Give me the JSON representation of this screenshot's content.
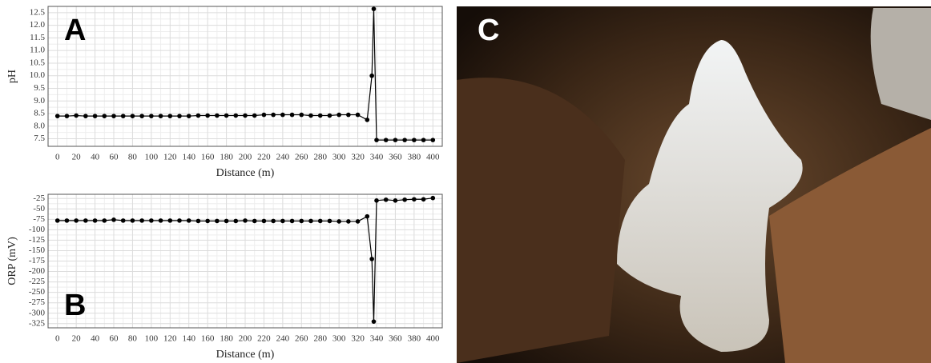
{
  "chart_data": [
    {
      "type": "line",
      "annotations": [
        "A"
      ],
      "ylabel": "pH",
      "xlabel": "Distance (m)",
      "x": [
        0,
        10,
        20,
        30,
        40,
        50,
        60,
        70,
        80,
        90,
        100,
        110,
        120,
        130,
        140,
        150,
        160,
        170,
        180,
        190,
        200,
        210,
        220,
        230,
        240,
        250,
        260,
        270,
        280,
        290,
        300,
        310,
        320,
        330,
        335,
        337,
        340,
        350,
        360,
        370,
        380,
        390,
        400
      ],
      "series": [
        {
          "color": "#000000",
          "values": [
            8.4,
            8.4,
            8.42,
            8.4,
            8.4,
            8.4,
            8.4,
            8.4,
            8.4,
            8.4,
            8.4,
            8.4,
            8.4,
            8.4,
            8.4,
            8.42,
            8.42,
            8.42,
            8.42,
            8.42,
            8.42,
            8.42,
            8.45,
            8.45,
            8.45,
            8.45,
            8.45,
            8.42,
            8.42,
            8.42,
            8.45,
            8.45,
            8.45,
            8.25,
            10.0,
            12.65,
            7.45,
            7.45,
            7.45,
            7.45,
            7.45,
            7.45,
            7.45
          ]
        }
      ],
      "xlim": [
        -10,
        410
      ],
      "xticks": [
        0,
        20,
        40,
        60,
        80,
        100,
        120,
        140,
        160,
        180,
        200,
        220,
        240,
        260,
        280,
        300,
        320,
        340,
        360,
        380,
        400
      ],
      "ylim": [
        7.2,
        12.75
      ],
      "yticks": [
        7.5,
        {
          "value": 8,
          "label": "8.0"
        },
        8.5,
        {
          "value": 9,
          "label": "9.0"
        },
        9.5,
        {
          "value": 10,
          "label": "10.0"
        },
        10.5,
        {
          "value": 11,
          "label": "11.0"
        },
        11.5,
        {
          "value": 12,
          "label": "12.0"
        },
        12.5
      ],
      "grid": true
    },
    {
      "type": "line",
      "annotations": [
        "B"
      ],
      "ylabel": "ORP (mV)",
      "xlabel": "Distance (m)",
      "x": [
        0,
        10,
        20,
        30,
        40,
        50,
        60,
        70,
        80,
        90,
        100,
        110,
        120,
        130,
        140,
        150,
        160,
        170,
        180,
        190,
        200,
        210,
        220,
        230,
        240,
        250,
        260,
        270,
        280,
        290,
        300,
        310,
        320,
        330,
        335,
        337,
        340,
        350,
        360,
        370,
        380,
        390,
        400
      ],
      "series": [
        {
          "color": "#000000",
          "values": [
            -78,
            -78,
            -78,
            -78,
            -78,
            -78,
            -76,
            -78,
            -78,
            -78,
            -78,
            -78,
            -78,
            -78,
            -78,
            -79,
            -79,
            -79,
            -79,
            -79,
            -78,
            -79,
            -79,
            -79,
            -79,
            -79,
            -79,
            -79,
            -79,
            -79,
            -80,
            -80,
            -80,
            -68,
            -170,
            -320,
            -30,
            -28,
            -30,
            -28,
            -27,
            -27,
            -24
          ]
        }
      ],
      "xlim": [
        -10,
        410
      ],
      "xticks": [
        0,
        20,
        40,
        60,
        80,
        100,
        120,
        140,
        160,
        180,
        200,
        220,
        240,
        260,
        280,
        300,
        320,
        340,
        360,
        380,
        400
      ],
      "ylim": [
        -335,
        -15
      ],
      "yticks": [
        -325,
        -300,
        -275,
        -250,
        -225,
        -200,
        -175,
        -150,
        -125,
        -100,
        -75,
        -50,
        -25
      ],
      "grid": true
    }
  ],
  "photo": {
    "label": "C"
  }
}
